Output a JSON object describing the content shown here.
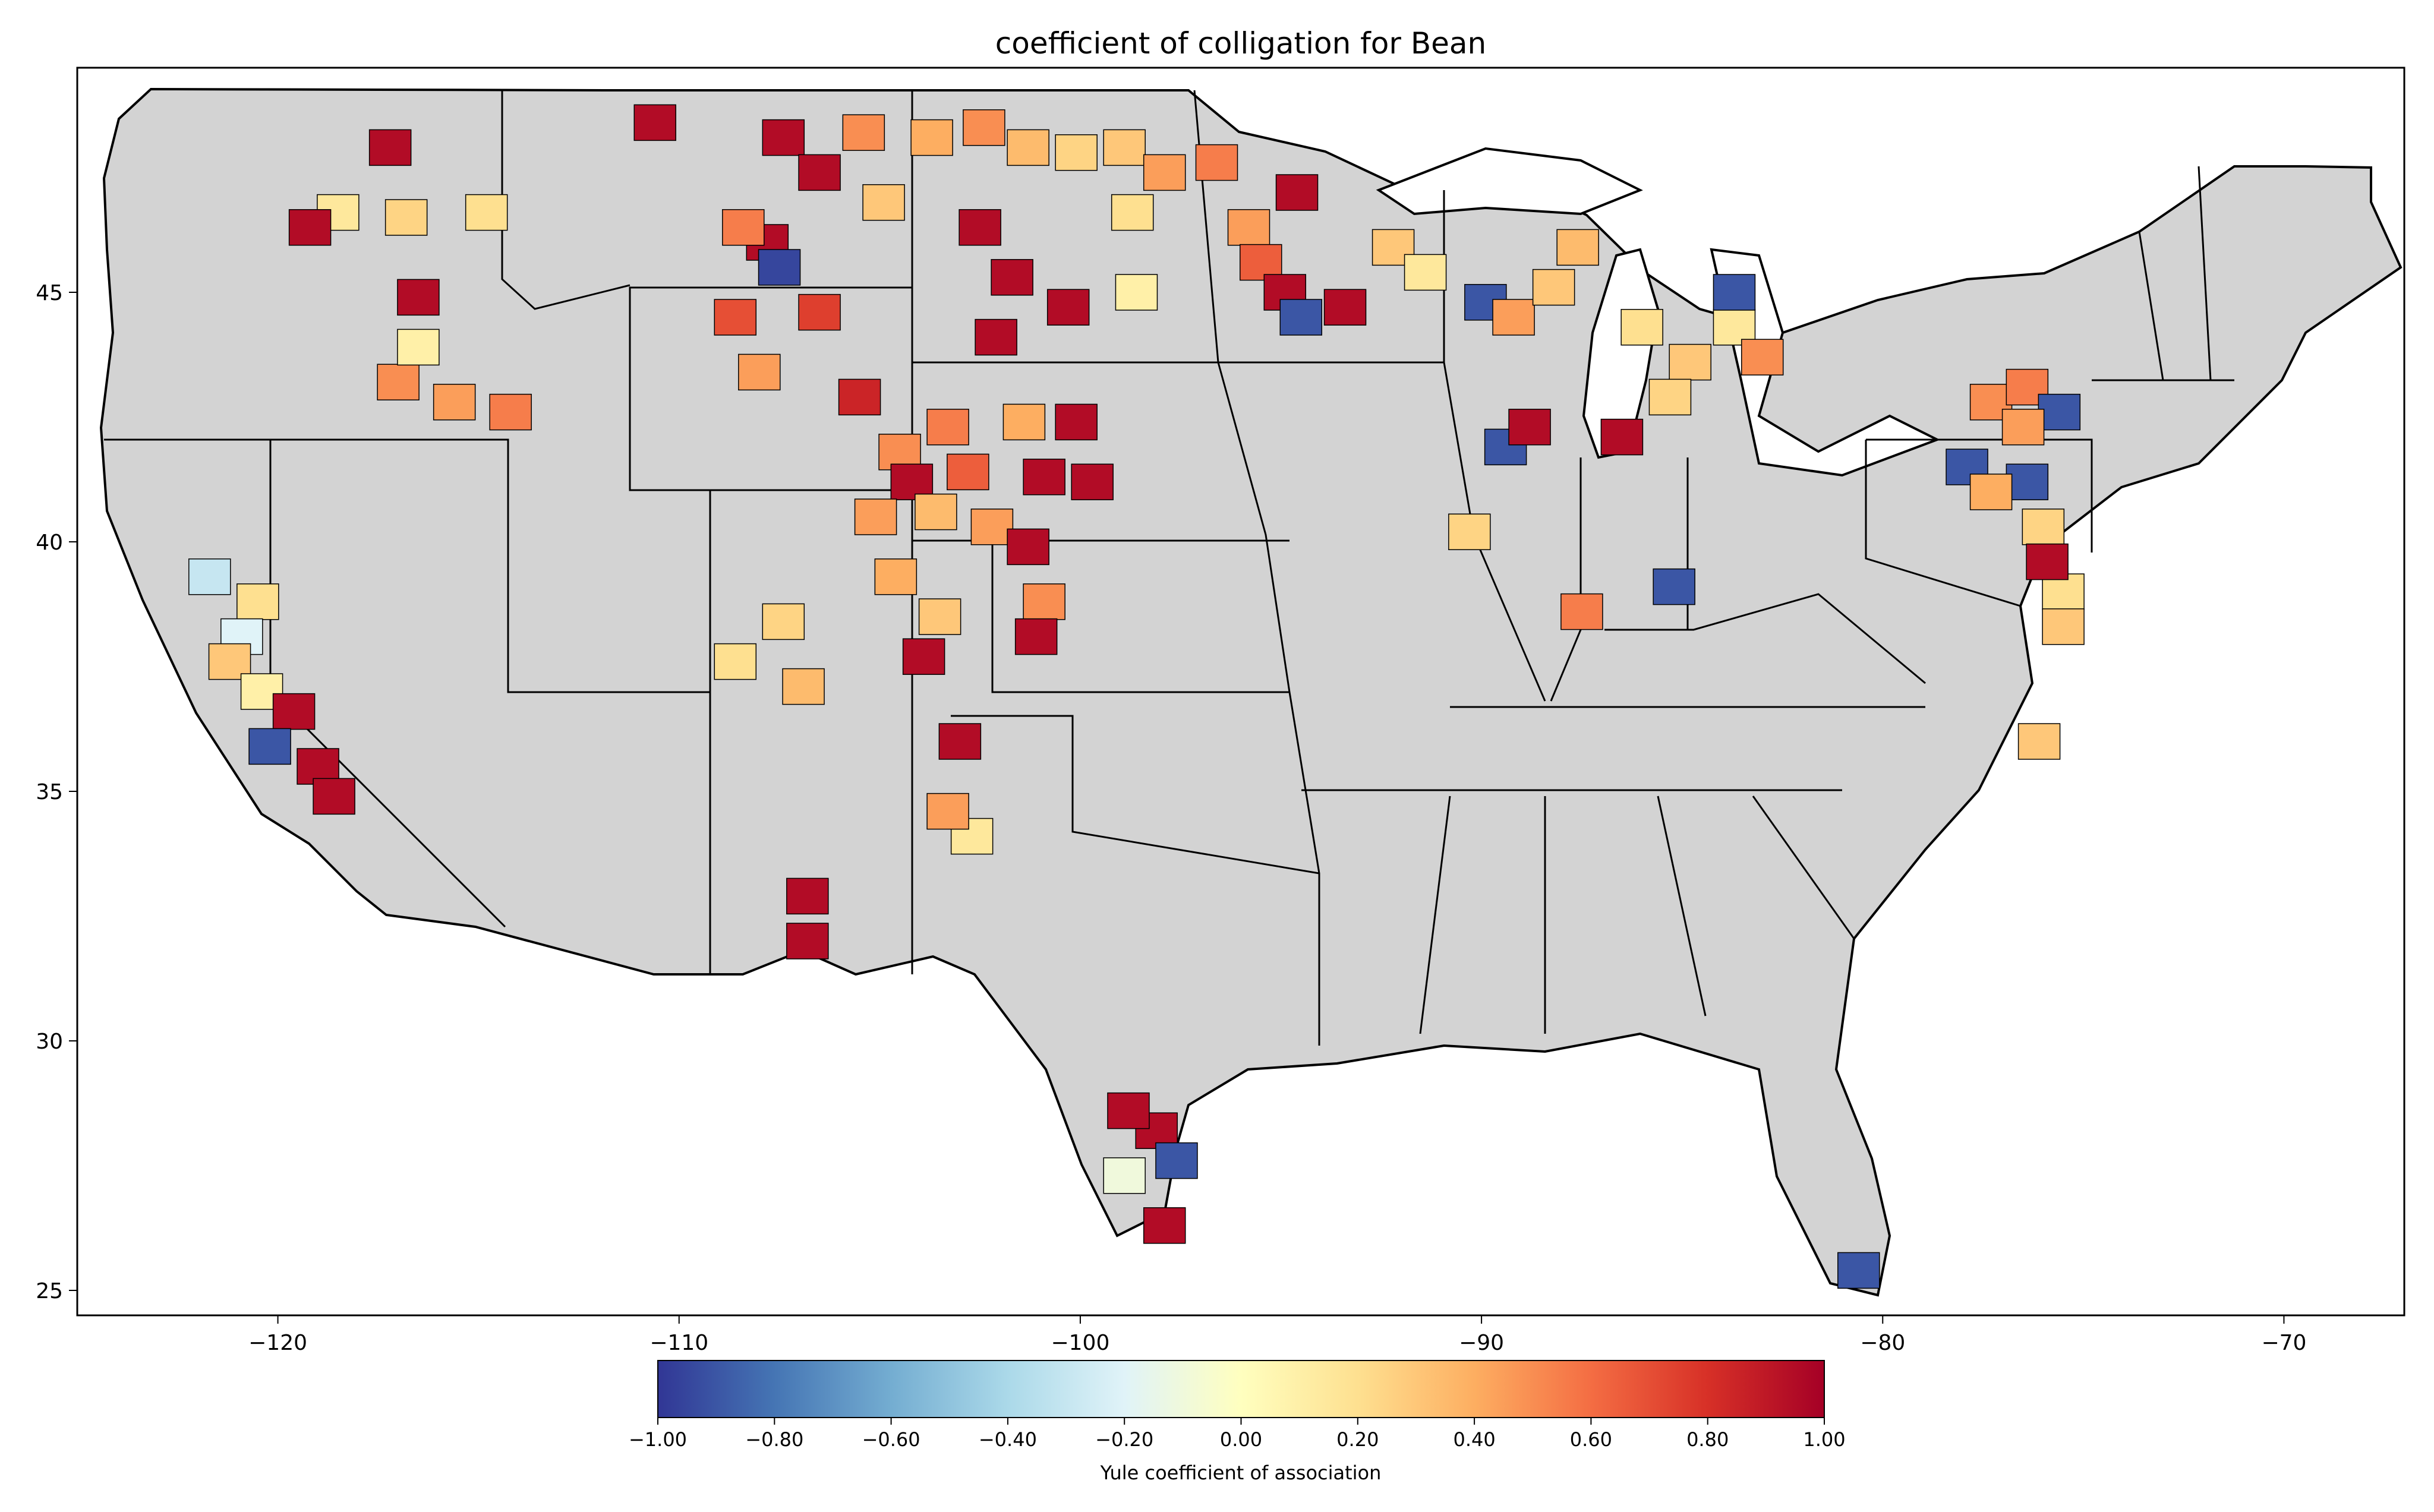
{
  "title": "coefficient of colligation for Bean",
  "map": {
    "x_ticks": [
      {
        "value": -120,
        "label": "−120"
      },
      {
        "value": -110,
        "label": "−110"
      },
      {
        "value": -100,
        "label": "−100"
      },
      {
        "value": -90,
        "label": "−90"
      },
      {
        "value": -80,
        "label": "−80"
      },
      {
        "value": -70,
        "label": "−70"
      }
    ],
    "y_ticks": [
      {
        "value": 45,
        "label": "45"
      },
      {
        "value": 40,
        "label": "40"
      },
      {
        "value": 35,
        "label": "35"
      },
      {
        "value": 30,
        "label": "30"
      },
      {
        "value": 25,
        "label": "25"
      }
    ],
    "lon_range": [
      -125,
      -67
    ],
    "lat_range": [
      24.5,
      49.5
    ],
    "no_data_color": "#d3d3d3",
    "counties": [
      {
        "lon": -118.5,
        "lat": 46.6,
        "value": 0.15
      },
      {
        "lon": -117.2,
        "lat": 47.9,
        "value": 0.95
      },
      {
        "lon": -119.2,
        "lat": 46.3,
        "value": 0.95
      },
      {
        "lon": -116.8,
        "lat": 46.5,
        "value": 0.25
      },
      {
        "lon": -114.8,
        "lat": 46.6,
        "value": 0.2
      },
      {
        "lon": -117.0,
        "lat": 43.2,
        "value": 0.5
      },
      {
        "lon": -116.5,
        "lat": 43.9,
        "value": 0.1
      },
      {
        "lon": -116.5,
        "lat": 44.9,
        "value": 0.95
      },
      {
        "lon": -115.6,
        "lat": 42.8,
        "value": 0.45
      },
      {
        "lon": -114.2,
        "lat": 42.6,
        "value": 0.55
      },
      {
        "lon": -110.6,
        "lat": 48.4,
        "value": 0.95
      },
      {
        "lon": -107.4,
        "lat": 48.1,
        "value": 0.95
      },
      {
        "lon": -106.5,
        "lat": 47.4,
        "value": 0.95
      },
      {
        "lon": -105.4,
        "lat": 48.2,
        "value": 0.5
      },
      {
        "lon": -104.9,
        "lat": 46.8,
        "value": 0.3
      },
      {
        "lon": -107.8,
        "lat": 46.0,
        "value": 0.95
      },
      {
        "lon": -107.5,
        "lat": 45.5,
        "value": -0.95
      },
      {
        "lon": -108.4,
        "lat": 46.3,
        "value": 0.55
      },
      {
        "lon": -103.7,
        "lat": 48.1,
        "value": 0.4
      },
      {
        "lon": -102.4,
        "lat": 48.3,
        "value": 0.5
      },
      {
        "lon": -101.3,
        "lat": 47.9,
        "value": 0.35
      },
      {
        "lon": -100.1,
        "lat": 47.8,
        "value": 0.25
      },
      {
        "lon": -98.9,
        "lat": 47.9,
        "value": 0.3
      },
      {
        "lon": -97.9,
        "lat": 47.4,
        "value": 0.45
      },
      {
        "lon": -98.7,
        "lat": 46.6,
        "value": 0.2
      },
      {
        "lon": -102.5,
        "lat": 46.3,
        "value": 0.95
      },
      {
        "lon": -101.7,
        "lat": 45.3,
        "value": 0.95
      },
      {
        "lon": -100.3,
        "lat": 44.7,
        "value": 0.95
      },
      {
        "lon": -102.1,
        "lat": 44.1,
        "value": 0.95
      },
      {
        "lon": -98.6,
        "lat": 45.0,
        "value": 0.1
      },
      {
        "lon": -96.6,
        "lat": 47.6,
        "value": 0.55
      },
      {
        "lon": -95.8,
        "lat": 46.3,
        "value": 0.45
      },
      {
        "lon": -94.6,
        "lat": 47.0,
        "value": 0.95
      },
      {
        "lon": -95.5,
        "lat": 45.6,
        "value": 0.65
      },
      {
        "lon": -94.9,
        "lat": 45.0,
        "value": 0.95
      },
      {
        "lon": -94.5,
        "lat": 44.5,
        "value": -0.9
      },
      {
        "lon": -93.4,
        "lat": 44.7,
        "value": 0.95
      },
      {
        "lon": -92.2,
        "lat": 45.9,
        "value": 0.3
      },
      {
        "lon": -91.4,
        "lat": 45.4,
        "value": 0.15
      },
      {
        "lon": -89.9,
        "lat": 44.8,
        "value": -0.9
      },
      {
        "lon": -89.2,
        "lat": 44.5,
        "value": 0.45
      },
      {
        "lon": -88.2,
        "lat": 45.1,
        "value": 0.3
      },
      {
        "lon": -87.6,
        "lat": 45.9,
        "value": 0.35
      },
      {
        "lon": -86.0,
        "lat": 44.3,
        "value": 0.2
      },
      {
        "lon": -84.8,
        "lat": 43.6,
        "value": 0.3
      },
      {
        "lon": -83.7,
        "lat": 44.3,
        "value": 0.15
      },
      {
        "lon": -83.0,
        "lat": 43.7,
        "value": 0.5
      },
      {
        "lon": -85.3,
        "lat": 42.9,
        "value": 0.25
      },
      {
        "lon": -83.7,
        "lat": 45.0,
        "value": -0.9
      },
      {
        "lon": -86.5,
        "lat": 42.1,
        "value": 0.95
      },
      {
        "lon": -89.4,
        "lat": 41.9,
        "value": -0.9
      },
      {
        "lon": -88.8,
        "lat": 42.3,
        "value": 0.95
      },
      {
        "lon": -90.3,
        "lat": 40.2,
        "value": 0.25
      },
      {
        "lon": -87.5,
        "lat": 38.6,
        "value": 0.55
      },
      {
        "lon": -85.2,
        "lat": 39.1,
        "value": -0.9
      },
      {
        "lon": -108.6,
        "lat": 44.5,
        "value": 0.7
      },
      {
        "lon": -106.5,
        "lat": 44.6,
        "value": 0.75
      },
      {
        "lon": -108.0,
        "lat": 43.4,
        "value": 0.45
      },
      {
        "lon": -105.5,
        "lat": 42.9,
        "value": 0.85
      },
      {
        "lon": -104.5,
        "lat": 41.8,
        "value": 0.5
      },
      {
        "lon": -104.2,
        "lat": 41.2,
        "value": 0.95
      },
      {
        "lon": -103.3,
        "lat": 42.3,
        "value": 0.55
      },
      {
        "lon": -102.8,
        "lat": 41.4,
        "value": 0.65
      },
      {
        "lon": -101.4,
        "lat": 42.4,
        "value": 0.4
      },
      {
        "lon": -100.1,
        "lat": 42.4,
        "value": 0.95
      },
      {
        "lon": -100.9,
        "lat": 41.3,
        "value": 0.95
      },
      {
        "lon": -99.7,
        "lat": 41.2,
        "value": 0.95
      },
      {
        "lon": -102.2,
        "lat": 40.3,
        "value": 0.45
      },
      {
        "lon": -101.3,
        "lat": 39.9,
        "value": 0.95
      },
      {
        "lon": -100.9,
        "lat": 38.8,
        "value": 0.5
      },
      {
        "lon": -101.1,
        "lat": 38.1,
        "value": 0.95
      },
      {
        "lon": -103.6,
        "lat": 40.6,
        "value": 0.35
      },
      {
        "lon": -105.1,
        "lat": 40.5,
        "value": 0.45
      },
      {
        "lon": -104.6,
        "lat": 39.3,
        "value": 0.4
      },
      {
        "lon": -103.5,
        "lat": 38.5,
        "value": 0.3
      },
      {
        "lon": -103.9,
        "lat": 37.7,
        "value": 0.95
      },
      {
        "lon": -107.4,
        "lat": 38.4,
        "value": 0.25
      },
      {
        "lon": -108.6,
        "lat": 37.6,
        "value": 0.2
      },
      {
        "lon": -106.9,
        "lat": 37.1,
        "value": 0.35
      },
      {
        "lon": -103.0,
        "lat": 36.0,
        "value": 0.95
      },
      {
        "lon": -102.7,
        "lat": 34.1,
        "value": 0.15
      },
      {
        "lon": -103.3,
        "lat": 34.6,
        "value": 0.45
      },
      {
        "lon": -106.8,
        "lat": 32.9,
        "value": 0.95
      },
      {
        "lon": -106.8,
        "lat": 32.0,
        "value": 0.95
      },
      {
        "lon": -120.5,
        "lat": 38.8,
        "value": 0.2
      },
      {
        "lon": -120.9,
        "lat": 38.1,
        "value": -0.2
      },
      {
        "lon": -121.2,
        "lat": 37.6,
        "value": 0.3
      },
      {
        "lon": -120.4,
        "lat": 37.0,
        "value": 0.1
      },
      {
        "lon": -119.6,
        "lat": 36.6,
        "value": 0.95
      },
      {
        "lon": -119.0,
        "lat": 35.5,
        "value": 0.95
      },
      {
        "lon": -118.6,
        "lat": 34.9,
        "value": 0.95
      },
      {
        "lon": -120.2,
        "lat": 35.9,
        "value": -0.9
      },
      {
        "lon": -121.7,
        "lat": 39.3,
        "value": -0.3
      },
      {
        "lon": -98.1,
        "lat": 28.2,
        "value": 0.95
      },
      {
        "lon": -98.8,
        "lat": 28.6,
        "value": 0.95
      },
      {
        "lon": -97.6,
        "lat": 27.6,
        "value": -0.9
      },
      {
        "lon": -97.9,
        "lat": 26.3,
        "value": 0.95
      },
      {
        "lon": -98.9,
        "lat": 27.3,
        "value": -0.1
      },
      {
        "lon": -80.6,
        "lat": 25.4,
        "value": -0.9
      },
      {
        "lon": -77.3,
        "lat": 42.8,
        "value": 0.5
      },
      {
        "lon": -76.4,
        "lat": 43.1,
        "value": 0.55
      },
      {
        "lon": -75.6,
        "lat": 42.6,
        "value": -0.9
      },
      {
        "lon": -76.5,
        "lat": 42.3,
        "value": 0.45
      },
      {
        "lon": -77.9,
        "lat": 41.5,
        "value": -0.9
      },
      {
        "lon": -76.4,
        "lat": 41.2,
        "value": -0.9
      },
      {
        "lon": -77.3,
        "lat": 41.0,
        "value": 0.4
      },
      {
        "lon": -76.0,
        "lat": 40.3,
        "value": 0.25
      },
      {
        "lon": -75.5,
        "lat": 39.0,
        "value": 0.2
      },
      {
        "lon": -75.9,
        "lat": 39.6,
        "value": 0.95
      },
      {
        "lon": -75.5,
        "lat": 38.3,
        "value": 0.3
      },
      {
        "lon": -76.1,
        "lat": 36.0,
        "value": 0.3
      }
    ]
  },
  "colorbar": {
    "label": "Yule coefficient of association",
    "vmin": -1.0,
    "vmax": 1.0,
    "tick_labels": [
      "−1.00",
      "−0.80",
      "−0.60",
      "−0.40",
      "−0.20",
      "0.00",
      "0.20",
      "0.40",
      "0.60",
      "0.80",
      "1.00"
    ],
    "colormap": "RdYlBu_r",
    "colors": [
      "#313695",
      "#4575b4",
      "#74add1",
      "#abd9e9",
      "#e0f3f8",
      "#ffffbf",
      "#fee090",
      "#fdae61",
      "#f46d43",
      "#d73027",
      "#a50026"
    ]
  }
}
